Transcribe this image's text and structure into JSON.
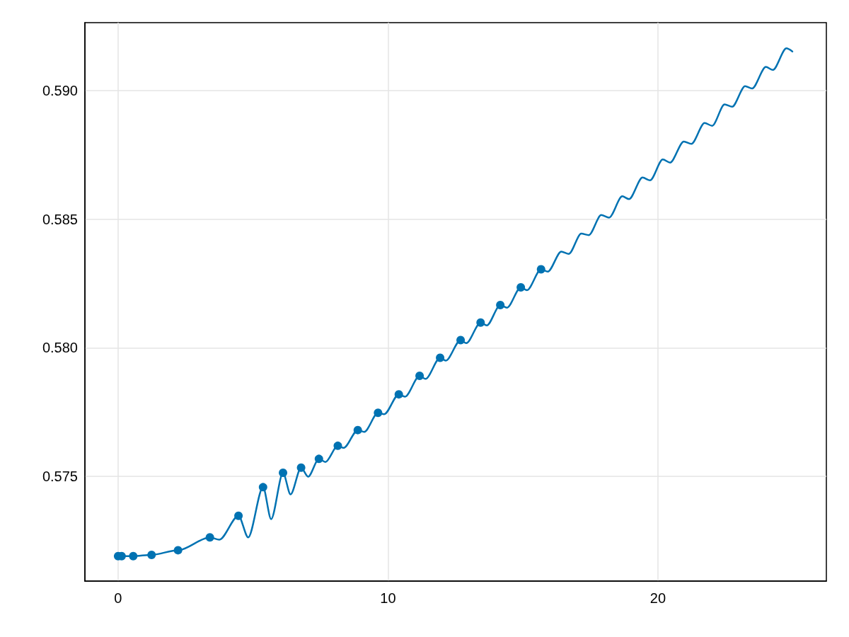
{
  "chart_data": {
    "type": "line",
    "series": [
      {
        "type": "line",
        "color": "#0072b2",
        "marker": "none",
        "line_style": "solid",
        "x": [
          0,
          0.56,
          1.24,
          2.22,
          3.4,
          3.75,
          4.46,
          4.82,
          5.37,
          5.67,
          6.11,
          6.39,
          6.78,
          7.04,
          7.44,
          7.68,
          8.14,
          8.36,
          8.88,
          9.12,
          9.63,
          9.86,
          10.4,
          10.63,
          11.17,
          11.39,
          11.93,
          12.14,
          12.69,
          12.9,
          13.43,
          13.66,
          14.16,
          14.41,
          14.92,
          15.15,
          15.67,
          15.92,
          16.42,
          16.7,
          17.16,
          17.44,
          17.9,
          18.19,
          18.68,
          18.93,
          19.43,
          19.71,
          20.18,
          20.45,
          20.96,
          21.24,
          21.73,
          22.01,
          22.47,
          22.75,
          23.23,
          23.49,
          24.0,
          24.26,
          24.76,
          24.98
        ],
        "values": [
          0.5719,
          0.5719,
          0.57195,
          0.57213,
          0.57263,
          0.57254,
          0.57347,
          0.57263,
          0.57458,
          0.57334,
          0.57514,
          0.5743,
          0.57534,
          0.57499,
          0.57568,
          0.57556,
          0.57619,
          0.57611,
          0.5768,
          0.57673,
          0.57747,
          0.57742,
          0.57819,
          0.5781,
          0.57891,
          0.57879,
          0.57961,
          0.5795,
          0.5803,
          0.58018,
          0.58098,
          0.58087,
          0.58166,
          0.58156,
          0.58235,
          0.58224,
          0.58305,
          0.58296,
          0.58374,
          0.58365,
          0.58444,
          0.58438,
          0.58516,
          0.58506,
          0.58589,
          0.58578,
          0.58662,
          0.58651,
          0.58732,
          0.5872,
          0.58802,
          0.58793,
          0.58874,
          0.58863,
          0.58946,
          0.58937,
          0.59017,
          0.59008,
          0.59092,
          0.5908,
          0.59164,
          0.59152
        ]
      },
      {
        "type": "scatter",
        "color": "#0072b2",
        "marker": "circle",
        "x": [
          0,
          0.13,
          0.56,
          1.24,
          2.22,
          3.4,
          4.46,
          5.37,
          6.11,
          6.78,
          7.44,
          8.14,
          8.88,
          9.63,
          10.4,
          11.17,
          11.93,
          12.69,
          13.43,
          14.16,
          14.92,
          15.67
        ],
        "values": [
          0.5719,
          0.5719,
          0.5719,
          0.57195,
          0.57213,
          0.57263,
          0.57347,
          0.57458,
          0.57514,
          0.57534,
          0.57568,
          0.57619,
          0.5768,
          0.57747,
          0.57819,
          0.57891,
          0.57961,
          0.5803,
          0.58098,
          0.58166,
          0.58235,
          0.58305
        ]
      }
    ],
    "xlim": [
      -1.23,
      26.24
    ],
    "xticks": [
      0,
      10,
      20
    ],
    "ylim": [
      0.57093,
      0.59264
    ],
    "yticks": [
      0.575,
      {
        "value": 0.58,
        "label": "0.580"
      },
      0.585,
      {
        "value": 0.59,
        "label": "0.590"
      }
    ],
    "grid": true
  }
}
